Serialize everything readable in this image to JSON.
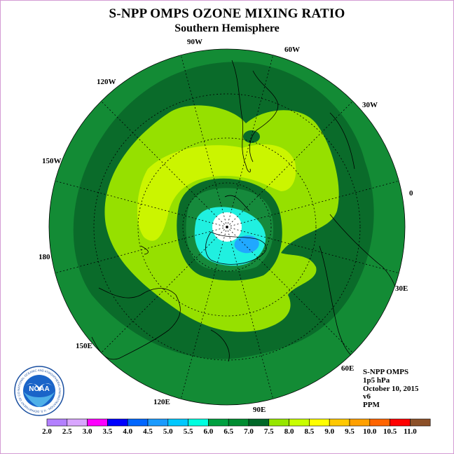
{
  "title": "S-NPP OMPS OZONE MIXING RATIO",
  "subtitle": "Southern Hemisphere",
  "longitude_labels": [
    "90W",
    "60W",
    "30W",
    "0",
    "30E",
    "60E",
    "90E",
    "120E",
    "150E",
    "180",
    "150W",
    "120W"
  ],
  "info": {
    "instrument": "S-NPP OMPS",
    "level": "1p5 hPa",
    "date": "October 10, 2015",
    "version": "v6",
    "units": "PPM"
  },
  "logo": {
    "text": "NOAA",
    "ring_text": "NATIONAL OCEANIC AND ATMOSPHERIC ADMINISTRATION · U.S. DEPARTMENT OF COMMERCE"
  },
  "colorbar": {
    "labels": [
      "2.0",
      "2.5",
      "3.0",
      "3.5",
      "4.0",
      "4.5",
      "5.0",
      "5.5",
      "6.0",
      "6.5",
      "7.0",
      "7.5",
      "8.0",
      "8.5",
      "9.0",
      "9.5",
      "10.0",
      "10.5",
      "11.0"
    ],
    "colors": [
      "#b380ff",
      "#d9a6ff",
      "#ff00ff",
      "#0000ff",
      "#0066ff",
      "#1a9bff",
      "#00c8ff",
      "#00ffe0",
      "#00a040",
      "#008c30",
      "#006828",
      "#96e600",
      "#c8ff00",
      "#ffff00",
      "#ffc800",
      "#ffa000",
      "#ff6400",
      "#ff0000",
      "#8c5028"
    ]
  },
  "fill_colors": {
    "outer": "#138b35",
    "band_dark": "#0a6b2a",
    "ring_65": "#168a3c",
    "light_green": "#96e000",
    "yellow_green": "#cbf500",
    "cyan": "#20f0e0",
    "blue": "#20a8ff",
    "pole": "#ffffff"
  }
}
